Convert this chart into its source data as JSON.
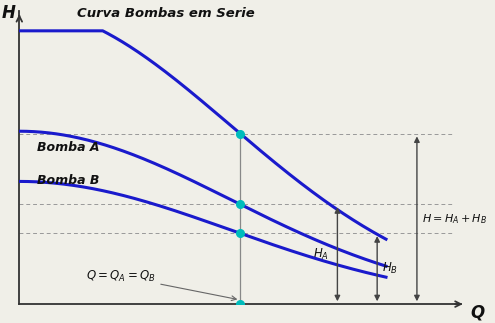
{
  "bg_color": "#f0efe8",
  "curve_color": "#1a1acc",
  "cyan_color": "#00bbbb",
  "text_color": "#111111",
  "label_A": "Bomba A",
  "label_B": "Bomba B",
  "label_serie": "Curva Bombas em Serie",
  "ylabel": "H",
  "xlabel": "Q",
  "q_op": 0.5,
  "xlim": [
    0,
    1.0
  ],
  "ylim": [
    0,
    1.0
  ],
  "arrow_color": "#444444",
  "dashed_color": "#999999",
  "vline_color": "#888888"
}
